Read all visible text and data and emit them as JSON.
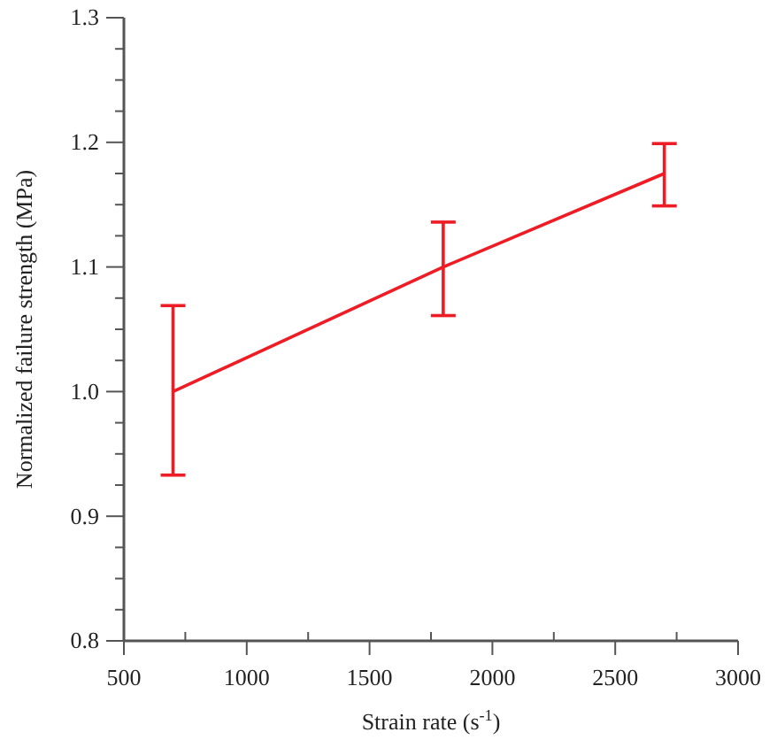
{
  "chart_data": {
    "type": "line",
    "xlabel": "Strain rate (s$^{-1}$)",
    "ylabel": "Normalized failure strength (MPa)",
    "x": [
      700,
      1800,
      2700
    ],
    "series": [
      {
        "color": "#ee1c25",
        "values": [
          1.0,
          1.1,
          1.175
        ],
        "errors": [
          [
            0.933,
            1.069
          ],
          [
            1.061,
            1.136
          ],
          [
            1.149,
            1.199
          ]
        ]
      }
    ],
    "xlim": [
      500,
      3000
    ],
    "xticks": [
      500,
      {
        "value": 750,
        "label": null
      },
      1000,
      {
        "value": 1250,
        "label": null
      },
      1500,
      {
        "value": 1750,
        "label": null
      },
      2000,
      {
        "value": 2250,
        "label": null
      },
      2500,
      {
        "value": 2750,
        "label": null
      },
      3000
    ],
    "ylim": [
      0.8,
      1.3
    ],
    "yticks": [
      {
        "value": 0.8,
        "label": "0.8"
      },
      {
        "value": 0.825,
        "label": null
      },
      {
        "value": 0.85,
        "label": null
      },
      {
        "value": 0.875,
        "label": null
      },
      {
        "value": 0.9,
        "label": "0.9"
      },
      {
        "value": 0.925,
        "label": null
      },
      {
        "value": 0.95,
        "label": null
      },
      {
        "value": 0.975,
        "label": null
      },
      {
        "value": 1.0,
        "label": "1.0"
      },
      {
        "value": 1.025,
        "label": null
      },
      {
        "value": 1.05,
        "label": null
      },
      {
        "value": 1.075,
        "label": null
      },
      {
        "value": 1.1,
        "label": "1.1"
      },
      {
        "value": 1.125,
        "label": null
      },
      {
        "value": 1.15,
        "label": null
      },
      {
        "value": 1.175,
        "label": null
      },
      {
        "value": 1.2,
        "label": "1.2"
      },
      {
        "value": 1.225,
        "label": null
      },
      {
        "value": 1.25,
        "label": null
      },
      {
        "value": 1.275,
        "label": null
      },
      {
        "value": 1.3,
        "label": "1.3"
      }
    ],
    "line_style": "solid"
  }
}
